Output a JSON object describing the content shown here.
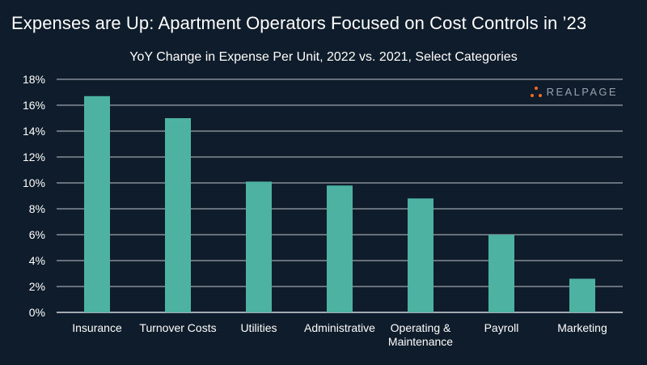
{
  "header": {
    "title": "Expenses are Up: Apartment Operators Focused on Cost Controls in ’23"
  },
  "logo": {
    "text": "REALPAGE",
    "icon": "realpage-dots-logo-icon"
  },
  "colors": {
    "background": "#0f1c2b",
    "bar": "#4db2a2",
    "grid": "#ffffff",
    "logo_accent": "#f26b21"
  },
  "chart_data": {
    "type": "bar",
    "title": "YoY Change in Expense Per Unit, 2022 vs. 2021, Select Categories",
    "xlabel": "",
    "ylabel": "",
    "categories": [
      "Insurance",
      "Turnover Costs",
      "Utilities",
      "Administrative",
      "Operating & Maintenance",
      "Payroll",
      "Marketing"
    ],
    "category_label_lines": [
      [
        "Insurance"
      ],
      [
        "Turnover Costs"
      ],
      [
        "Utilities"
      ],
      [
        "Administrative"
      ],
      [
        "Operating &",
        "Maintenance"
      ],
      [
        "Payroll"
      ],
      [
        "Marketing"
      ]
    ],
    "values": [
      16.7,
      15.0,
      10.1,
      9.8,
      8.8,
      6.0,
      2.6
    ],
    "ylim": [
      0,
      18
    ],
    "yticks": [
      0,
      2,
      4,
      6,
      8,
      10,
      12,
      14,
      16,
      18
    ],
    "ytick_labels": [
      "0%",
      "2%",
      "4%",
      "6%",
      "8%",
      "10%",
      "12%",
      "14%",
      "16%",
      "18%"
    ],
    "grid": true,
    "legend": "none"
  }
}
